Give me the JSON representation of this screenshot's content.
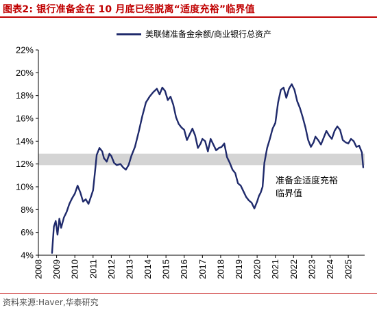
{
  "figure": {
    "title": "图表2:  银行准备金在 10 月底已经脱离“适度充裕”临界值",
    "source": "资料来源:Haver,华泰研究"
  },
  "colors": {
    "line": "#1f2a6b",
    "band": "#d4d4d4",
    "accent": "#c00000"
  },
  "chart_data": {
    "type": "line",
    "title": "",
    "xlabel": "",
    "ylabel": "",
    "x_ticks": [
      "2008",
      "2009",
      "2010",
      "2011",
      "2012",
      "2013",
      "2014",
      "2015",
      "2016",
      "2017",
      "2018",
      "2019",
      "2020",
      "2021",
      "2022",
      "2023",
      "2024",
      "2025"
    ],
    "y_ticks": [
      "4%",
      "6%",
      "8%",
      "10%",
      "12%",
      "14%",
      "16%",
      "18%",
      "20%",
      "22%"
    ],
    "xlim": [
      2008.0,
      2025.9
    ],
    "ylim": [
      4,
      22
    ],
    "legend": {
      "position": "top-right"
    },
    "grid": false,
    "band": {
      "y_min": 11.9,
      "y_max": 12.9,
      "label_lines": [
        "准备金适度充裕",
        "临界值"
      ]
    },
    "series": [
      {
        "name": "美联储准备金余额/商业银行总资产",
        "x": [
          2008.75,
          2008.85,
          2008.95,
          2009.05,
          2009.15,
          2009.25,
          2009.4,
          2009.55,
          2009.7,
          2009.85,
          2010.0,
          2010.15,
          2010.3,
          2010.45,
          2010.6,
          2010.75,
          2010.9,
          2011.0,
          2011.1,
          2011.2,
          2011.35,
          2011.5,
          2011.6,
          2011.75,
          2011.9,
          2012.0,
          2012.15,
          2012.3,
          2012.5,
          2012.65,
          2012.8,
          2012.95,
          2013.1,
          2013.3,
          2013.5,
          2013.7,
          2013.9,
          2014.1,
          2014.3,
          2014.5,
          2014.65,
          2014.8,
          2014.95,
          2015.1,
          2015.25,
          2015.4,
          2015.55,
          2015.7,
          2015.85,
          2016.0,
          2016.15,
          2016.3,
          2016.45,
          2016.6,
          2016.75,
          2016.9,
          2017.0,
          2017.15,
          2017.3,
          2017.45,
          2017.6,
          2017.75,
          2017.9,
          2018.05,
          2018.2,
          2018.35,
          2018.5,
          2018.65,
          2018.8,
          2018.95,
          2019.1,
          2019.25,
          2019.4,
          2019.55,
          2019.7,
          2019.85,
          2020.0,
          2020.1,
          2020.2,
          2020.3,
          2020.4,
          2020.55,
          2020.7,
          2020.85,
          2021.0,
          2021.15,
          2021.3,
          2021.45,
          2021.6,
          2021.75,
          2021.9,
          2022.05,
          2022.2,
          2022.35,
          2022.5,
          2022.65,
          2022.8,
          2022.95,
          2023.1,
          2023.2,
          2023.35,
          2023.5,
          2023.65,
          2023.8,
          2023.95,
          2024.1,
          2024.25,
          2024.4,
          2024.55,
          2024.7,
          2024.85,
          2025.0,
          2025.15,
          2025.3,
          2025.45,
          2025.6,
          2025.75,
          2025.82
        ],
        "values": [
          4.2,
          6.5,
          7.0,
          5.8,
          7.2,
          6.4,
          7.3,
          7.8,
          8.5,
          9.0,
          9.4,
          10.1,
          9.5,
          8.7,
          8.9,
          8.5,
          9.2,
          9.7,
          11.2,
          12.8,
          13.4,
          13.1,
          12.5,
          12.2,
          12.9,
          12.7,
          12.1,
          11.9,
          12.0,
          11.7,
          11.5,
          11.9,
          12.7,
          13.5,
          14.8,
          16.2,
          17.4,
          17.9,
          18.3,
          18.6,
          18.1,
          18.7,
          18.4,
          17.6,
          17.9,
          17.2,
          16.1,
          15.5,
          15.2,
          15.0,
          14.1,
          14.6,
          15.1,
          14.5,
          13.4,
          13.8,
          14.2,
          14.0,
          13.1,
          14.2,
          13.7,
          13.2,
          13.4,
          13.5,
          13.8,
          12.6,
          12.1,
          11.5,
          11.2,
          10.3,
          10.1,
          9.6,
          9.1,
          8.8,
          8.6,
          8.1,
          8.7,
          9.2,
          9.5,
          10.0,
          12.1,
          13.4,
          14.2,
          15.1,
          15.6,
          17.4,
          18.5,
          18.7,
          17.8,
          18.6,
          19.0,
          18.5,
          17.5,
          16.9,
          16.1,
          15.2,
          14.1,
          13.5,
          13.9,
          14.4,
          14.1,
          13.7,
          14.3,
          14.9,
          14.5,
          14.2,
          14.9,
          15.3,
          15.0,
          14.1,
          13.9,
          13.8,
          14.2,
          14.0,
          13.5,
          13.6,
          13.0,
          11.7
        ]
      }
    ]
  }
}
